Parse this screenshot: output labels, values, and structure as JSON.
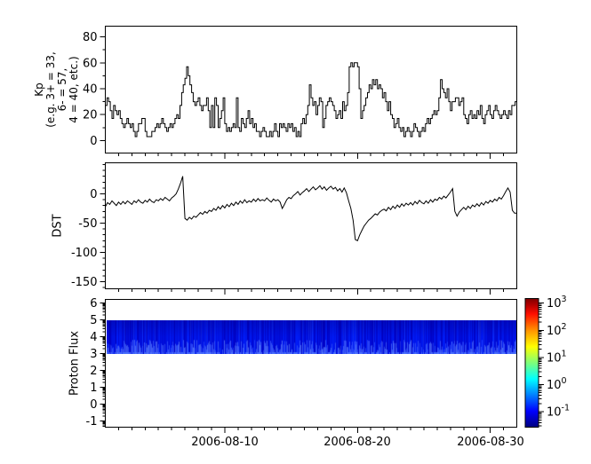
{
  "figure": {
    "background": "#ffffff",
    "line_color": "#000000",
    "axis_color": "#000000"
  },
  "x_axis": {
    "start_date": "2006-08-01",
    "end_date": "2006-09-01",
    "span_days": 31,
    "major_tick_days": [
      9,
      19,
      29
    ],
    "minor_tick_step_days": 1,
    "tick_labels": [
      "2006-08-10",
      "2006-08-20",
      "2006-08-30"
    ]
  },
  "chart_data": [
    {
      "type": "line",
      "style": "step",
      "name": "Kp",
      "ylabel": "Kp\n(e.g. 3+ = 33,\n6- = 57,\n4 = 40, etc.)",
      "ylim": [
        -9.7,
        88.3
      ],
      "yticks": [
        0,
        20,
        40,
        60,
        80
      ],
      "yticks_minor": [
        10,
        30,
        50,
        70
      ],
      "cadence_hours": 3,
      "values": [
        27,
        33,
        30,
        23,
        17,
        27,
        23,
        20,
        23,
        17,
        13,
        10,
        13,
        17,
        13,
        10,
        13,
        7,
        3,
        7,
        13,
        13,
        17,
        17,
        7,
        3,
        3,
        3,
        7,
        7,
        10,
        13,
        10,
        13,
        17,
        13,
        10,
        7,
        10,
        13,
        10,
        13,
        17,
        20,
        17,
        27,
        37,
        43,
        48,
        57,
        50,
        43,
        37,
        30,
        27,
        30,
        33,
        27,
        23,
        27,
        27,
        33,
        23,
        10,
        27,
        10,
        33,
        27,
        10,
        17,
        23,
        33,
        13,
        7,
        10,
        7,
        10,
        13,
        10,
        33,
        10,
        7,
        17,
        13,
        10,
        17,
        23,
        13,
        17,
        10,
        13,
        7,
        7,
        3,
        7,
        10,
        7,
        3,
        3,
        7,
        3,
        7,
        13,
        7,
        3,
        13,
        10,
        13,
        10,
        7,
        13,
        10,
        13,
        7,
        10,
        3,
        7,
        3,
        13,
        17,
        13,
        20,
        27,
        43,
        33,
        27,
        30,
        20,
        27,
        33,
        30,
        10,
        17,
        27,
        30,
        33,
        30,
        27,
        23,
        17,
        20,
        23,
        17,
        30,
        23,
        27,
        37,
        57,
        60,
        57,
        60,
        60,
        57,
        40,
        17,
        23,
        27,
        33,
        37,
        43,
        40,
        47,
        43,
        47,
        40,
        43,
        40,
        33,
        37,
        30,
        23,
        30,
        20,
        17,
        10,
        13,
        17,
        10,
        7,
        10,
        3,
        7,
        10,
        7,
        3,
        7,
        13,
        10,
        7,
        3,
        7,
        10,
        7,
        13,
        17,
        13,
        17,
        20,
        23,
        20,
        23,
        33,
        47,
        40,
        37,
        33,
        40,
        30,
        23,
        30,
        30,
        33,
        33,
        27,
        30,
        33,
        20,
        17,
        13,
        20,
        23,
        17,
        20,
        17,
        23,
        20,
        27,
        17,
        13,
        20,
        23,
        27,
        20,
        17,
        23,
        27,
        23,
        20,
        17,
        20,
        23,
        20,
        17,
        23,
        20,
        27,
        27,
        30
      ]
    },
    {
      "type": "line",
      "style": "line",
      "name": "DST",
      "ylabel": "DST",
      "ylim": [
        -162,
        53
      ],
      "yticks": [
        0,
        -50,
        -100,
        -150
      ],
      "yticks_minor_step": 10,
      "cadence_hours": 4,
      "values": [
        -22,
        -15,
        -18,
        -12,
        -16,
        -20,
        -14,
        -18,
        -13,
        -17,
        -12,
        -15,
        -18,
        -12,
        -15,
        -10,
        -14,
        -16,
        -11,
        -14,
        -9,
        -13,
        -15,
        -10,
        -12,
        -8,
        -11,
        -6,
        -9,
        -12,
        -7,
        -4,
        0,
        8,
        18,
        30,
        -42,
        -45,
        -40,
        -43,
        -38,
        -40,
        -36,
        -32,
        -35,
        -30,
        -33,
        -28,
        -30,
        -25,
        -28,
        -22,
        -26,
        -20,
        -24,
        -18,
        -22,
        -16,
        -20,
        -14,
        -18,
        -12,
        -16,
        -10,
        -15,
        -12,
        -14,
        -9,
        -13,
        -8,
        -12,
        -10,
        -12,
        -7,
        -11,
        -14,
        -9,
        -12,
        -10,
        -14,
        -25,
        -18,
        -10,
        -6,
        -8,
        -3,
        0,
        4,
        -2,
        2,
        5,
        9,
        4,
        8,
        12,
        7,
        10,
        14,
        8,
        12,
        6,
        10,
        13,
        8,
        11,
        5,
        9,
        3,
        10,
        2,
        -12,
        -25,
        -45,
        -78,
        -80,
        -70,
        -62,
        -55,
        -50,
        -45,
        -42,
        -38,
        -34,
        -36,
        -31,
        -28,
        -26,
        -29,
        -23,
        -27,
        -21,
        -25,
        -19,
        -23,
        -17,
        -21,
        -16,
        -19,
        -15,
        -19,
        -13,
        -17,
        -11,
        -15,
        -17,
        -12,
        -16,
        -10,
        -14,
        -9,
        -11,
        -6,
        -9,
        -4,
        -7,
        -2,
        3,
        9,
        -30,
        -38,
        -31,
        -27,
        -23,
        -27,
        -21,
        -25,
        -19,
        -22,
        -17,
        -21,
        -15,
        -19,
        -13,
        -16,
        -11,
        -14,
        -9,
        -12,
        -6,
        -9,
        -3,
        4,
        10,
        3,
        -28,
        -33
      ]
    },
    {
      "type": "heatmap",
      "name": "Proton Flux",
      "ylabel": "Proton Flux",
      "ylim": [
        -1.36,
        6.22
      ],
      "yticks": [
        -1,
        0,
        1,
        2,
        3,
        4,
        5,
        6
      ],
      "minor_ticks": "log10 subdivisions (2-9) per unit decade",
      "band": {
        "y_from": 3,
        "y_to": 5,
        "description": "continuous low-flux band, values ~1e-1 to 1e0 (blue on jet colormap), vertical streak texture",
        "base_color": "#0000cc",
        "streak_color": "#4a6eff",
        "seed": 42
      },
      "colorbar": {
        "scale": "log10",
        "tick_exponents": [
          3,
          2,
          1,
          0,
          -1
        ],
        "colormap": "jet",
        "gradient_top_to_bottom": [
          {
            "offset": 0.0,
            "color": "#7f0000"
          },
          {
            "offset": 0.05,
            "color": "#b40000"
          },
          {
            "offset": 0.12,
            "color": "#ff0f00"
          },
          {
            "offset": 0.25,
            "color": "#ff9500"
          },
          {
            "offset": 0.375,
            "color": "#ffff00"
          },
          {
            "offset": 0.5,
            "color": "#7dff7a"
          },
          {
            "offset": 0.625,
            "color": "#00ffff"
          },
          {
            "offset": 0.75,
            "color": "#0080ff"
          },
          {
            "offset": 0.875,
            "color": "#0000ff"
          },
          {
            "offset": 1.0,
            "color": "#00007f"
          }
        ]
      }
    }
  ]
}
